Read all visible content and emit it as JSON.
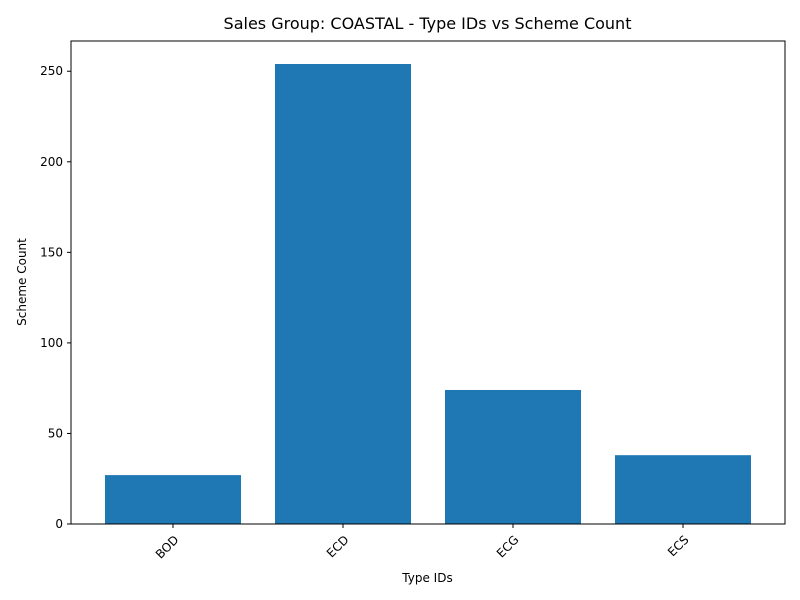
{
  "chart_data": {
    "type": "bar",
    "title": "Sales Group: COASTAL - Type IDs vs Scheme Count",
    "xlabel": "Type IDs",
    "ylabel": "Scheme Count",
    "categories": [
      "BOD",
      "ECD",
      "ECG",
      "ECS"
    ],
    "values": [
      27,
      254,
      74,
      38
    ],
    "ylim": [
      0,
      266.7
    ],
    "yticks": [
      0,
      50,
      100,
      150,
      200,
      250
    ],
    "x_tick_rotation_deg": 45,
    "grid": false,
    "legend": "none",
    "bar_color": "#1f77b4"
  }
}
